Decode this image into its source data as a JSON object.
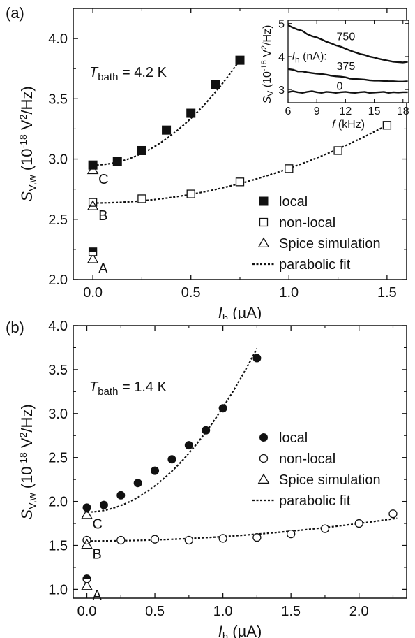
{
  "figure": {
    "font_color": "#111111",
    "panels": [
      {
        "panel_label": "(a)",
        "temperature_label": "T",
        "temperature_sub": "bath",
        "temperature_value": " = 4.2 K",
        "point_labels": [
          "A",
          "B",
          "C"
        ],
        "legend": [
          {
            "symbol": "filled-square",
            "label": "local"
          },
          {
            "symbol": "open-square",
            "label": "non-local"
          },
          {
            "symbol": "open-triangle",
            "label": "Spice simulation"
          },
          {
            "symbol": "dotted-line",
            "label": "parabolic fit"
          }
        ],
        "chart_data": {
          "type": "scatter",
          "title": "",
          "xlabel_main": "I",
          "xlabel_sub": "h",
          "xlabel_unit": " (µA)",
          "ylabel_main": "S",
          "ylabel_sub": "V,w",
          "ylabel_unit_prefix": " (10",
          "ylabel_exp": "-18",
          "ylabel_unit_mid": " V",
          "ylabel_exp2": "2",
          "ylabel_unit_suffix": "/Hz)",
          "xlim": [
            -0.1,
            1.6
          ],
          "ylim": [
            2.0,
            4.25
          ],
          "xticks": [
            0.0,
            0.5,
            1.0,
            1.5
          ],
          "xtick_labels": [
            "0.0",
            "0.5",
            "1.0",
            "1.5"
          ],
          "yticks": [
            2.0,
            2.5,
            3.0,
            3.5,
            4.0
          ],
          "ytick_labels": [
            "2.0",
            "2.5",
            "3.0",
            "3.5",
            "4.0"
          ],
          "series": [
            {
              "name": "local",
              "marker": "filled-square",
              "x": [
                0.0,
                0.125,
                0.25,
                0.375,
                0.5,
                0.625,
                0.75
              ],
              "y": [
                2.95,
                2.98,
                3.07,
                3.24,
                3.38,
                3.62,
                3.82
              ]
            },
            {
              "name": "non-local",
              "marker": "open-square",
              "x": [
                0.0,
                0.25,
                0.5,
                0.75,
                1.0,
                1.25,
                1.5
              ],
              "y": [
                2.64,
                2.67,
                2.71,
                2.81,
                2.92,
                3.07,
                3.28
              ]
            },
            {
              "name": "Spice simulation",
              "marker": "open-triangle",
              "x": [
                0.0,
                0.0,
                0.0
              ],
              "y": [
                2.91,
                2.61,
                2.17
              ]
            },
            {
              "name": "A local",
              "marker": "half-square",
              "x": [
                0.0
              ],
              "y": [
                2.23
              ]
            }
          ],
          "fits": [
            {
              "name": "parabolic fit",
              "a": 2.95,
              "c": 1.55,
              "x_range": [
                0.0,
                0.75
              ]
            },
            {
              "name": "parabolic fit",
              "a": 2.635,
              "c": 0.287,
              "x_range": [
                0.0,
                1.5
              ]
            }
          ]
        },
        "inset": {
          "chart_data": {
            "type": "line",
            "xlabel_main": "f",
            "xlabel_unit": " (kHz)",
            "ylabel_main": "S",
            "ylabel_sub": "V",
            "ylabel_unit_prefix": " (10",
            "ylabel_exp": "-18",
            "ylabel_unit_mid": " V",
            "ylabel_exp2": "2",
            "ylabel_unit_suffix": "/Hz)",
            "xlim": [
              6,
              18.6
            ],
            "ylim": [
              2.6,
              5.1
            ],
            "xticks": [
              6,
              9,
              12,
              15,
              18
            ],
            "xtick_labels": [
              "6",
              "9",
              "12",
              "15",
              "18"
            ],
            "yticks": [
              3,
              4,
              5
            ],
            "ytick_labels": [
              "3",
              "4",
              "5"
            ],
            "series": [
              {
                "name": "750",
                "x": [
                  6.0,
                  6.5,
                  7.0,
                  7.5,
                  8.0,
                  8.5,
                  9.0,
                  9.5,
                  10.0,
                  10.5,
                  11.0,
                  11.5,
                  12.0,
                  12.5,
                  13.0,
                  13.5,
                  14.0,
                  14.5,
                  15.0,
                  15.5,
                  16.0,
                  16.5,
                  17.0,
                  17.5,
                  18.0,
                  18.5
                ],
                "y": [
                  4.95,
                  4.88,
                  4.82,
                  4.78,
                  4.68,
                  4.62,
                  4.58,
                  4.52,
                  4.45,
                  4.4,
                  4.34,
                  4.3,
                  4.24,
                  4.18,
                  4.13,
                  4.08,
                  4.05,
                  4.0,
                  3.97,
                  3.93,
                  3.9,
                  3.87,
                  3.84,
                  3.83,
                  3.82,
                  3.84
                ]
              },
              {
                "name": "375",
                "x": [
                  6.0,
                  6.5,
                  7.0,
                  7.5,
                  8.0,
                  8.5,
                  9.0,
                  9.5,
                  10.0,
                  10.5,
                  11.0,
                  11.5,
                  12.0,
                  12.5,
                  13.0,
                  13.5,
                  14.0,
                  14.5,
                  15.0,
                  15.5,
                  16.0,
                  16.5,
                  17.0,
                  17.5,
                  18.0,
                  18.5
                ],
                "y": [
                  3.62,
                  3.6,
                  3.55,
                  3.55,
                  3.52,
                  3.5,
                  3.48,
                  3.47,
                  3.45,
                  3.42,
                  3.4,
                  3.39,
                  3.37,
                  3.33,
                  3.32,
                  3.31,
                  3.3,
                  3.28,
                  3.27,
                  3.27,
                  3.26,
                  3.25,
                  3.25,
                  3.24,
                  3.24,
                  3.25
                ]
              },
              {
                "name": "0",
                "x": [
                  6.0,
                  6.5,
                  7.0,
                  7.5,
                  8.0,
                  8.5,
                  9.0,
                  9.5,
                  10.0,
                  10.5,
                  11.0,
                  11.5,
                  12.0,
                  12.5,
                  13.0,
                  13.5,
                  14.0,
                  14.5,
                  15.0,
                  15.5,
                  16.0,
                  16.5,
                  17.0,
                  17.5,
                  18.0,
                  18.5
                ],
                "y": [
                  2.92,
                  2.95,
                  2.92,
                  2.9,
                  2.93,
                  2.95,
                  2.92,
                  2.9,
                  2.93,
                  2.92,
                  2.9,
                  2.92,
                  2.93,
                  2.91,
                  2.9,
                  2.92,
                  2.93,
                  2.9,
                  2.91,
                  2.92,
                  2.93,
                  2.9,
                  2.92,
                  2.91,
                  2.92,
                  2.92
                ]
              }
            ]
          },
          "ih_label": "I",
          "ih_sub": "h",
          "ih_unit": " (nA):",
          "curve_labels": [
            "750",
            "375",
            "0"
          ]
        }
      },
      {
        "panel_label": "(b)",
        "temperature_label": "T",
        "temperature_sub": "bath",
        "temperature_value": " = 1.4 K",
        "point_labels": [
          "A",
          "B",
          "C"
        ],
        "legend": [
          {
            "symbol": "filled-circle",
            "label": "local"
          },
          {
            "symbol": "open-circle",
            "label": "non-local"
          },
          {
            "symbol": "open-triangle",
            "label": "Spice simulation"
          },
          {
            "symbol": "dotted-line",
            "label": "parabolic fit"
          }
        ],
        "chart_data": {
          "type": "scatter",
          "title": "",
          "xlabel_main": "I",
          "xlabel_sub": "h",
          "xlabel_unit": " (µA)",
          "ylabel_main": "S",
          "ylabel_sub": "V,w",
          "ylabel_unit_prefix": " (10",
          "ylabel_exp": "-18",
          "ylabel_unit_mid": " V",
          "ylabel_exp2": "2",
          "ylabel_unit_suffix": "/Hz)",
          "xlim": [
            -0.1,
            2.35
          ],
          "ylim": [
            0.9,
            4.0
          ],
          "xticks": [
            0.0,
            0.5,
            1.0,
            1.5,
            2.0
          ],
          "xtick_labels": [
            "0.0",
            "0.5",
            "1.0",
            "1.5",
            "2.0"
          ],
          "yticks": [
            1.0,
            1.5,
            2.0,
            2.5,
            3.0,
            3.5,
            4.0
          ],
          "ytick_labels": [
            "1.0",
            "1.5",
            "2.0",
            "2.5",
            "3.0",
            "3.5",
            "4.0"
          ],
          "series": [
            {
              "name": "local",
              "marker": "filled-circle",
              "x": [
                0.0,
                0.125,
                0.25,
                0.375,
                0.5,
                0.625,
                0.75,
                0.875,
                1.0,
                1.25
              ],
              "y": [
                1.93,
                1.96,
                2.07,
                2.21,
                2.35,
                2.48,
                2.64,
                2.81,
                3.06,
                3.63
              ]
            },
            {
              "name": "non-local",
              "marker": "open-circle",
              "x": [
                0.0,
                0.25,
                0.5,
                0.75,
                1.0,
                1.25,
                1.5,
                1.75,
                2.0,
                2.25
              ],
              "y": [
                1.56,
                1.56,
                1.57,
                1.56,
                1.58,
                1.59,
                1.63,
                1.69,
                1.75,
                1.86
              ]
            },
            {
              "name": "Spice simulation",
              "marker": "open-triangle",
              "x": [
                0.0,
                0.0,
                0.0
              ],
              "y": [
                1.85,
                1.51,
                1.04
              ]
            },
            {
              "name": "A local",
              "marker": "half-circle",
              "x": [
                0.0
              ],
              "y": [
                1.12
              ]
            }
          ],
          "fits": [
            {
              "name": "parabolic fit",
              "a": 1.88,
              "c": 1.19,
              "x_range": [
                0.0,
                1.25
              ]
            },
            {
              "name": "parabolic fit",
              "a": 1.55,
              "c": 0.05,
              "x_range": [
                0.0,
                2.28
              ]
            }
          ]
        }
      }
    ]
  }
}
